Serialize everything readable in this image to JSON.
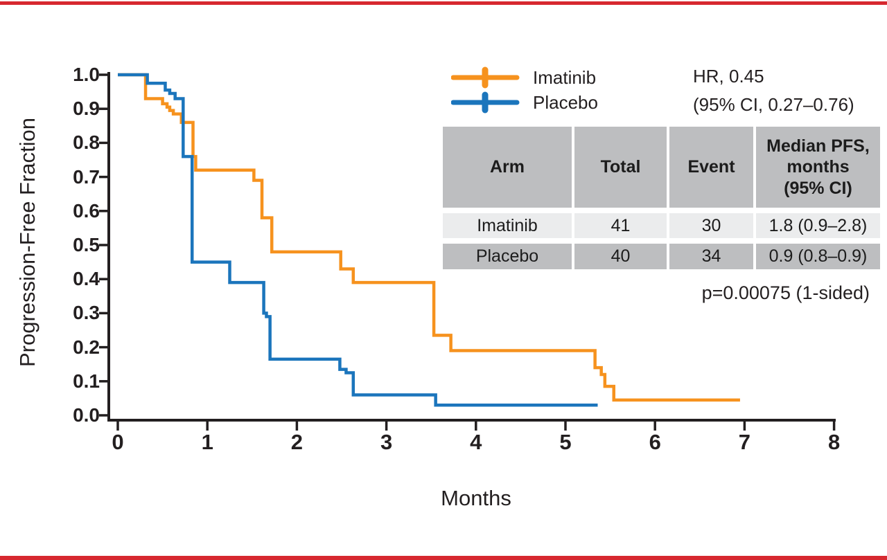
{
  "page": {
    "accent_bar_color": "#d7282f",
    "background": "#ffffff",
    "text_color": "#231f20"
  },
  "chart_data": {
    "type": "line",
    "subtype": "kaplan_meier_step",
    "title": "",
    "xlabel": "Months",
    "ylabel": "Progression-Free Fraction",
    "xlim": [
      0,
      8
    ],
    "ylim": [
      0.0,
      1.0
    ],
    "grid": "off",
    "legend_position": "top-inside-right",
    "x_ticks": [
      "0",
      "1",
      "2",
      "3",
      "4",
      "5",
      "6",
      "7",
      "8"
    ],
    "y_ticks": [
      "1.0",
      "0.9",
      "0.8",
      "0.7",
      "0.6",
      "0.5",
      "0.4",
      "0.3",
      "0.2",
      "0.1",
      "0.0"
    ],
    "series": [
      {
        "name": "Imatinib",
        "color": "#f6921e",
        "n_total": 41,
        "n_events": 30,
        "points": [
          [
            0,
            1.0
          ],
          [
            0.31,
            0.93
          ],
          [
            0.5,
            0.915
          ],
          [
            0.55,
            0.905
          ],
          [
            0.58,
            0.895
          ],
          [
            0.62,
            0.885
          ],
          [
            0.71,
            0.86
          ],
          [
            0.84,
            0.76
          ],
          [
            0.87,
            0.72
          ],
          [
            1.52,
            0.69
          ],
          [
            1.61,
            0.58
          ],
          [
            1.72,
            0.48
          ],
          [
            2.49,
            0.43
          ],
          [
            2.63,
            0.39
          ],
          [
            3.53,
            0.235
          ],
          [
            3.72,
            0.19
          ],
          [
            5.33,
            0.14
          ],
          [
            5.4,
            0.12
          ],
          [
            5.44,
            0.085
          ],
          [
            5.54,
            0.045
          ]
        ],
        "end_month": 6.95
      },
      {
        "name": "Placebo",
        "color": "#1b75bc",
        "n_total": 40,
        "n_events": 34,
        "points": [
          [
            0,
            1.0
          ],
          [
            0.33,
            0.975
          ],
          [
            0.53,
            0.955
          ],
          [
            0.58,
            0.945
          ],
          [
            0.64,
            0.93
          ],
          [
            0.73,
            0.76
          ],
          [
            0.83,
            0.45
          ],
          [
            1.25,
            0.39
          ],
          [
            1.63,
            0.3
          ],
          [
            1.66,
            0.29
          ],
          [
            1.7,
            0.165
          ],
          [
            2.48,
            0.135
          ],
          [
            2.55,
            0.125
          ],
          [
            2.63,
            0.06
          ],
          [
            3.55,
            0.03
          ]
        ],
        "end_month": 5.36
      }
    ],
    "annotations": {
      "hr_line1": "HR, 0.45",
      "hr_line2": "(95% CI, 0.27–0.76)",
      "p_value": "p=0.00075 (1-sided)"
    }
  },
  "table": {
    "headers": [
      "Arm",
      "Total",
      "Event",
      "Median PFS,\nmonths\n(95% CI)"
    ],
    "rows": [
      [
        "Imatinib",
        "41",
        "30",
        "1.8 (0.9–2.8)"
      ],
      [
        "Placebo",
        "40",
        "34",
        "0.9 (0.8–0.9)"
      ]
    ],
    "header_bg": "#bdbec0",
    "row_light_bg": "#ebeced",
    "row_dark_bg": "#bdbec0"
  }
}
